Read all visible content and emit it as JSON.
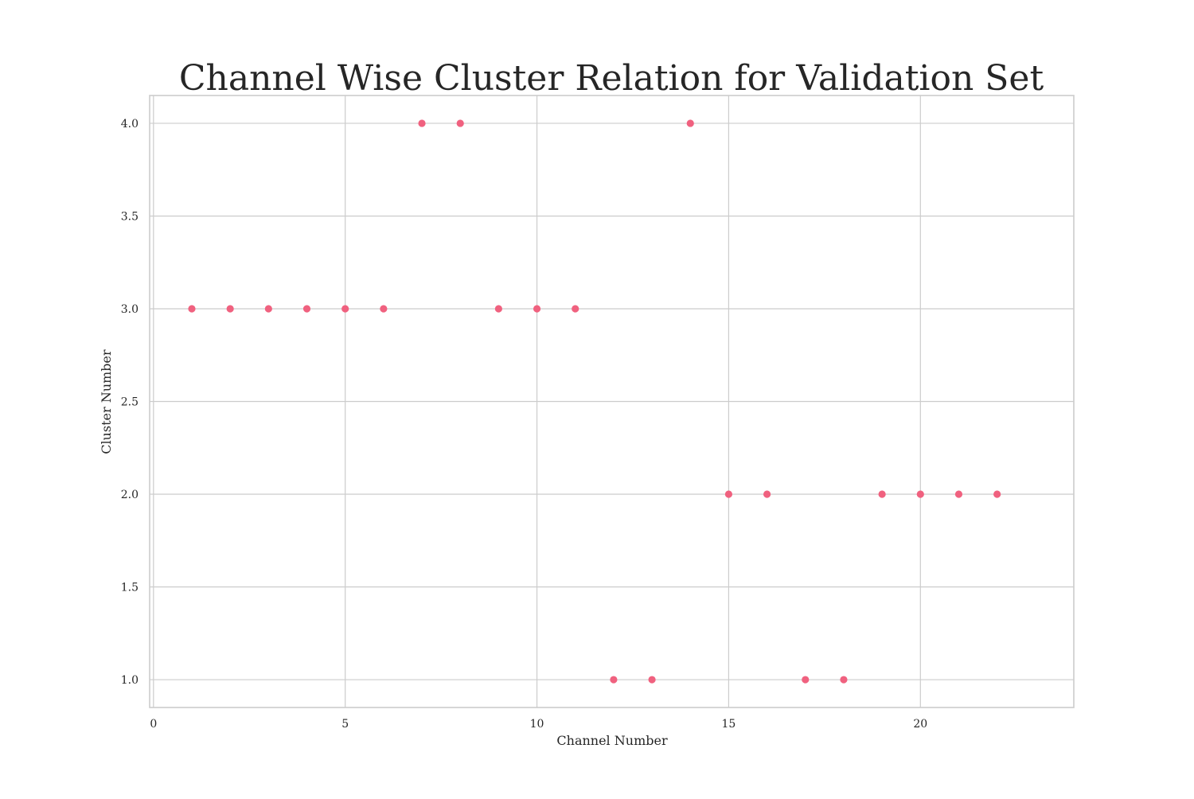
{
  "chart_data": {
    "type": "scatter",
    "title": "Channel Wise Cluster Relation for Validation Set",
    "xlabel": "Channel Number",
    "ylabel": "Cluster Number",
    "xlim": [
      -0.1,
      24.0
    ],
    "ylim": [
      0.85,
      4.15
    ],
    "xticks": [
      0,
      5,
      10,
      15,
      20
    ],
    "xtick_labels": [
      "0",
      "5",
      "10",
      "15",
      "20"
    ],
    "yticks": [
      1.0,
      1.5,
      2.0,
      2.5,
      3.0,
      3.5,
      4.0
    ],
    "ytick_labels": [
      "1.0",
      "1.5",
      "2.0",
      "2.5",
      "3.0",
      "3.5",
      "4.0"
    ],
    "grid": true,
    "marker_color": "#f0617f",
    "points": [
      {
        "x": 1,
        "y": 3
      },
      {
        "x": 2,
        "y": 3
      },
      {
        "x": 3,
        "y": 3
      },
      {
        "x": 4,
        "y": 3
      },
      {
        "x": 5,
        "y": 3
      },
      {
        "x": 6,
        "y": 3
      },
      {
        "x": 7,
        "y": 4
      },
      {
        "x": 8,
        "y": 4
      },
      {
        "x": 9,
        "y": 3
      },
      {
        "x": 10,
        "y": 3
      },
      {
        "x": 11,
        "y": 3
      },
      {
        "x": 12,
        "y": 1
      },
      {
        "x": 13,
        "y": 1
      },
      {
        "x": 14,
        "y": 4
      },
      {
        "x": 15,
        "y": 2
      },
      {
        "x": 16,
        "y": 2
      },
      {
        "x": 17,
        "y": 1
      },
      {
        "x": 18,
        "y": 1
      },
      {
        "x": 19,
        "y": 2
      },
      {
        "x": 20,
        "y": 2
      },
      {
        "x": 21,
        "y": 2
      },
      {
        "x": 22,
        "y": 2
      }
    ]
  }
}
